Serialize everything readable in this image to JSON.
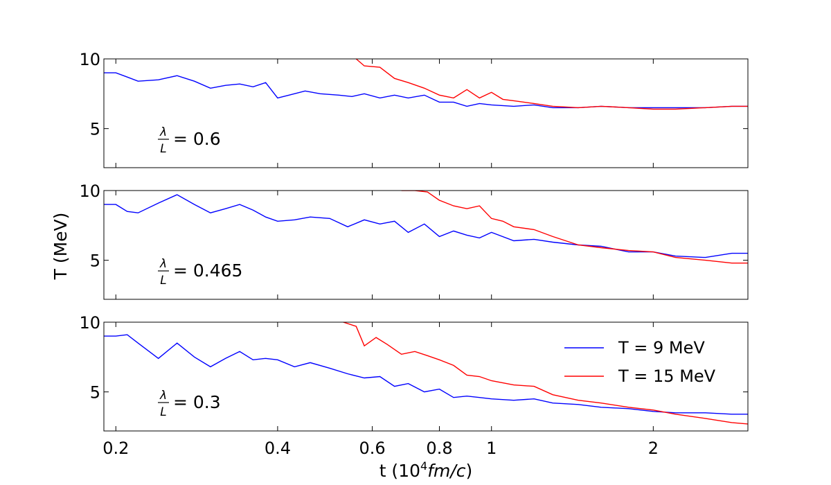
{
  "chart_data": {
    "type": "line",
    "xscale": "log",
    "xlabel_prefix": "t (10",
    "xlabel_exp": "4",
    "xlabel_unit": "fm/c",
    "xlabel_suffix": ")",
    "ylabel": "T (MeV)",
    "xlim": [
      0.19,
      3.0
    ],
    "ylim": [
      2.2,
      10
    ],
    "x_ticks": [
      0.2,
      0.4,
      0.6,
      0.8,
      1,
      2
    ],
    "x_tick_labels": [
      "0.2",
      "0.4",
      "0.6",
      "0.8",
      "1",
      "2"
    ],
    "y_ticks": [
      5,
      10
    ],
    "y_tick_labels": [
      "5",
      "10"
    ],
    "legend": {
      "placement": "lower-right of bottom panel",
      "entries": [
        {
          "label": "T = 9 MeV",
          "color": "#0000ff"
        },
        {
          "label": "T = 15 MeV",
          "color": "#ff0000"
        }
      ]
    },
    "panels": [
      {
        "label_num": "λ",
        "label_den": "L",
        "label_value": "= 0.6",
        "series": [
          {
            "name": "T = 9 MeV",
            "color": "#0000ff",
            "x": [
              0.19,
              0.2,
              0.21,
              0.22,
              0.24,
              0.26,
              0.28,
              0.3,
              0.32,
              0.34,
              0.36,
              0.38,
              0.4,
              0.42,
              0.45,
              0.48,
              0.52,
              0.55,
              0.58,
              0.62,
              0.66,
              0.7,
              0.75,
              0.8,
              0.85,
              0.9,
              0.95,
              1.0,
              1.1,
              1.2,
              1.3,
              1.45,
              1.6,
              1.8,
              2.0,
              2.2,
              2.5,
              2.8,
              3.0
            ],
            "y": [
              9.0,
              9.0,
              8.7,
              8.4,
              8.5,
              8.8,
              8.4,
              7.9,
              8.1,
              8.2,
              8.0,
              8.3,
              7.2,
              7.4,
              7.7,
              7.5,
              7.4,
              7.3,
              7.5,
              7.2,
              7.4,
              7.2,
              7.4,
              6.9,
              6.9,
              6.6,
              6.8,
              6.7,
              6.6,
              6.7,
              6.5,
              6.5,
              6.6,
              6.5,
              6.5,
              6.5,
              6.5,
              6.6,
              6.6
            ]
          },
          {
            "name": "T = 15 MeV",
            "color": "#ff0000",
            "x": [
              0.56,
              0.58,
              0.62,
              0.66,
              0.7,
              0.75,
              0.8,
              0.85,
              0.9,
              0.95,
              1.0,
              1.05,
              1.1,
              1.2,
              1.3,
              1.45,
              1.6,
              1.8,
              2.0,
              2.2,
              2.5,
              2.8,
              3.0
            ],
            "y": [
              10.0,
              9.5,
              9.4,
              8.6,
              8.3,
              7.9,
              7.4,
              7.2,
              7.8,
              7.2,
              7.6,
              7.1,
              7.0,
              6.8,
              6.6,
              6.5,
              6.6,
              6.5,
              6.4,
              6.4,
              6.5,
              6.6,
              6.6
            ]
          }
        ]
      },
      {
        "label_num": "λ",
        "label_den": "L",
        "label_value": "= 0.465",
        "series": [
          {
            "name": "T = 9 MeV",
            "color": "#0000ff",
            "x": [
              0.19,
              0.2,
              0.21,
              0.22,
              0.24,
              0.26,
              0.28,
              0.3,
              0.32,
              0.34,
              0.36,
              0.38,
              0.4,
              0.43,
              0.46,
              0.5,
              0.54,
              0.58,
              0.62,
              0.66,
              0.7,
              0.75,
              0.8,
              0.85,
              0.9,
              0.95,
              1.0,
              1.1,
              1.2,
              1.3,
              1.45,
              1.6,
              1.8,
              2.0,
              2.2,
              2.5,
              2.8,
              3.0
            ],
            "y": [
              9.0,
              9.0,
              8.5,
              8.4,
              9.1,
              9.7,
              9.0,
              8.4,
              8.7,
              9.0,
              8.6,
              8.1,
              7.8,
              7.9,
              8.1,
              8.0,
              7.4,
              7.9,
              7.6,
              7.8,
              7.0,
              7.6,
              6.7,
              7.1,
              6.8,
              6.6,
              7.0,
              6.4,
              6.5,
              6.3,
              6.1,
              6.0,
              5.6,
              5.6,
              5.3,
              5.2,
              5.5,
              5.5
            ]
          },
          {
            "name": "T = 15 MeV",
            "color": "#ff0000",
            "x": [
              0.68,
              0.72,
              0.76,
              0.8,
              0.85,
              0.9,
              0.95,
              1.0,
              1.05,
              1.1,
              1.2,
              1.3,
              1.45,
              1.6,
              1.8,
              2.0,
              2.2,
              2.5,
              2.8,
              3.0
            ],
            "y": [
              10.0,
              10.0,
              9.9,
              9.3,
              8.9,
              8.7,
              8.9,
              8.0,
              7.8,
              7.4,
              7.2,
              6.7,
              6.1,
              5.9,
              5.7,
              5.6,
              5.2,
              5.0,
              4.8,
              4.8
            ]
          }
        ]
      },
      {
        "label_num": "λ",
        "label_den": "L",
        "label_value": "= 0.3",
        "series": [
          {
            "name": "T = 9 MeV",
            "color": "#0000ff",
            "x": [
              0.19,
              0.2,
              0.21,
              0.22,
              0.24,
              0.26,
              0.28,
              0.3,
              0.32,
              0.34,
              0.36,
              0.38,
              0.4,
              0.43,
              0.46,
              0.5,
              0.54,
              0.58,
              0.62,
              0.66,
              0.7,
              0.75,
              0.8,
              0.85,
              0.9,
              0.95,
              1.0,
              1.1,
              1.2,
              1.3,
              1.45,
              1.6,
              1.8,
              2.0,
              2.2,
              2.5,
              2.8,
              3.0
            ],
            "y": [
              9.0,
              9.0,
              9.1,
              8.5,
              7.4,
              8.5,
              7.5,
              6.8,
              7.4,
              7.9,
              7.3,
              7.4,
              7.3,
              6.8,
              7.1,
              6.7,
              6.3,
              6.0,
              6.1,
              5.4,
              5.6,
              5.0,
              5.2,
              4.6,
              4.7,
              4.6,
              4.5,
              4.4,
              4.5,
              4.2,
              4.1,
              3.9,
              3.8,
              3.6,
              3.5,
              3.5,
              3.4,
              3.4
            ]
          },
          {
            "name": "T = 15 MeV",
            "color": "#ff0000",
            "x": [
              0.53,
              0.56,
              0.58,
              0.61,
              0.64,
              0.68,
              0.72,
              0.76,
              0.8,
              0.85,
              0.9,
              0.95,
              1.0,
              1.1,
              1.2,
              1.3,
              1.45,
              1.6,
              1.8,
              2.0,
              2.2,
              2.5,
              2.8,
              3.0
            ],
            "y": [
              10.0,
              9.7,
              8.3,
              8.9,
              8.4,
              7.7,
              7.9,
              7.6,
              7.3,
              6.9,
              6.2,
              6.1,
              5.8,
              5.5,
              5.4,
              4.8,
              4.4,
              4.2,
              3.9,
              3.7,
              3.4,
              3.1,
              2.8,
              2.7
            ]
          }
        ]
      }
    ]
  }
}
